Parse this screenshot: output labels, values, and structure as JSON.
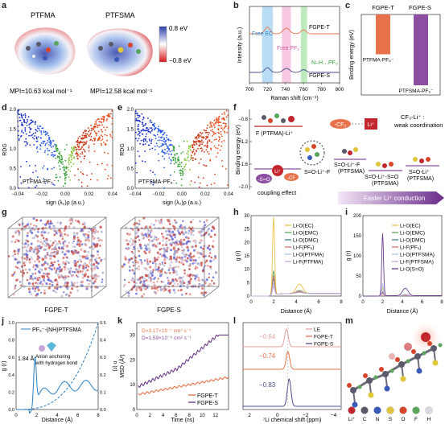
{
  "panel_letters": [
    "a",
    "b",
    "c",
    "d",
    "e",
    "f",
    "g",
    "h",
    "i",
    "j",
    "k",
    "l",
    "m"
  ],
  "a": {
    "mol1": "PTFMA",
    "mol2": "PTFSMA",
    "mpi1": "MPI=10.63 kcal mol⁻¹",
    "mpi2": "MPI=12.58 kcal mol⁻¹",
    "scale_max": "0.8 eV",
    "scale_min": "−0.8 eV",
    "colors": {
      "neg": "#d7191c",
      "mid": "#ffffff",
      "pos": "#2c3ea8"
    }
  },
  "b": {
    "ylabel": "Intensity (a.u.)",
    "xlabel": "Raman shift (cm⁻¹)",
    "xticks": [
      "700",
      "720",
      "740",
      "760",
      "780",
      "800"
    ],
    "bands": [
      {
        "label": "Free EC",
        "from": 714,
        "to": 726,
        "color": "#9fd0f0"
      },
      {
        "label": "Free PF₆⁻",
        "from": 736,
        "to": 746,
        "color": "#f5b6d8"
      },
      {
        "label": "N–H…PF₆",
        "from": 757,
        "to": 764,
        "color": "#a9e2a9"
      }
    ],
    "series": [
      {
        "name": "FGPE-T",
        "color": "#e8734a"
      },
      {
        "name": "FGPE-S",
        "color": "#4a4e8c"
      }
    ]
  },
  "c": {
    "ylabel": "Binding energy (eV)",
    "columns": [
      "FGPE-T",
      "FGPE-S"
    ],
    "bar_labels": [
      "PTFMA-PF₆⁻",
      "PTFSMA-PF₆⁻"
    ],
    "values": [
      -0.45,
      -0.8
    ],
    "colors": [
      "#e8734a",
      "#8c4ea0"
    ]
  },
  "d": {
    "inset": "PTFMA-PF₆⁻",
    "ylabel": "RDG",
    "xlabel": "sign (λ₂)ρ (a.u.)",
    "xticks": [
      "−0.04",
      "−0.02",
      "0.00",
      "0.02",
      "0.04"
    ],
    "yticks": [
      "0.0",
      "0.5",
      "1.0",
      "1.5",
      "2.0"
    ]
  },
  "e": {
    "inset": "PTFSMA-PF₆⁻",
    "ylabel": "RDG",
    "xlabel": "sign (λ₂)ρ (a.u.)",
    "xticks": [
      "−0.04",
      "−0.02",
      "0.00",
      "0.02",
      "0.04"
    ],
    "yticks": [
      "0.0",
      "0.5",
      "1.0",
      "1.5",
      "2.0"
    ]
  },
  "f": {
    "ylabel": "Binding energy (eV)",
    "yticks": [
      "−0.8",
      "−1.2",
      "−1.6",
      "−2.0"
    ],
    "ptfma_label": "F (PTFMA)-Li⁺",
    "cf3": "-CF₃",
    "li": "Li⁺",
    "weak": "CF₃-Li⁺ :",
    "weak2": "weak coordination",
    "ligand1": "S=O-Li⁺-F",
    "ligand1b": "(PTFSMA)",
    "ligand2": "S=O-Li⁺-S=O",
    "ligand2b": "(PTFSMA)",
    "ligand3": "S=O-Li⁺",
    "ligand3b": "(PTFSMA)",
    "top_label": "S=O-Li⁺-F",
    "coupling": "coupling effect",
    "so": "-S=O",
    "cf": "-CF",
    "arrow": "Faster Li⁺ conduction",
    "levels": [
      -1.0,
      -1.9,
      -1.8,
      -1.7
    ]
  },
  "g": {
    "box1": "FGPE-T",
    "box2": "FGPE-S"
  },
  "h": {
    "ylabel": "g (r)",
    "xlabel": "Distance (Å)",
    "yticks": [
      "0",
      "5",
      "10",
      "15",
      "20",
      "25",
      "30"
    ],
    "xticks": [
      "0",
      "2",
      "4",
      "6",
      "8"
    ],
    "legend": [
      {
        "name": "Li-O(EC)",
        "color": "#e8c24a"
      },
      {
        "name": "Li-O(EMC)",
        "color": "#5aa55a"
      },
      {
        "name": "Li-O(DMC)",
        "color": "#3b7f8c"
      },
      {
        "name": "Li-F(PF₆)",
        "color": "#d9736e"
      },
      {
        "name": "Li-O(PTFMA)",
        "color": "#a7c5e8"
      },
      {
        "name": "Li-F(PTFMA)",
        "color": "#c6a8d8"
      }
    ],
    "peaks": [
      29,
      9,
      6,
      7,
      4,
      3
    ]
  },
  "i": {
    "ylabel": "g (r)",
    "xlabel": "Distance (Å)",
    "yticks": [
      "0",
      "50",
      "100",
      "150",
      "200"
    ],
    "xticks": [
      "0",
      "2",
      "4",
      "6",
      "8"
    ],
    "legend": [
      {
        "name": "Li-O(EC)",
        "color": "#e8c24a"
      },
      {
        "name": "Li-O(EMC)",
        "color": "#5aa55a"
      },
      {
        "name": "Li-O(DMC)",
        "color": "#3b7f8c"
      },
      {
        "name": "Li-F(PF₆)",
        "color": "#d9736e"
      },
      {
        "name": "Li-O(PTFSMA)",
        "color": "#a7c5e8"
      },
      {
        "name": "Li-F(PTFSMA)",
        "color": "#c6a8d8"
      },
      {
        "name": "Li-O(S=O)",
        "color": "#6a3d8a"
      }
    ],
    "peaks": [
      20,
      10,
      8,
      6,
      30,
      12,
      155
    ]
  },
  "j": {
    "legend": "PF₆⁻-(NH)PTFSMA",
    "ylabel": "g (r)",
    "ylabel2": "n (r)",
    "xlabel": "Distance (Å)",
    "yticks": [
      "0.0",
      "0.2",
      "0.4",
      "0.6",
      "0.8",
      "1.0"
    ],
    "yticks2": [
      "0.0",
      "0.1",
      "0.2",
      "0.3",
      "0.4",
      "0.5"
    ],
    "xticks": [
      "0",
      "2",
      "4",
      "6",
      "8"
    ],
    "peak_label": "1.84 Å",
    "note1": "Anion anchoring",
    "note2": "with hydrogen bond",
    "color": "#2a7fc4"
  },
  "k": {
    "ylabel": "MSD (Å²)",
    "xlabel": "Time (ns)",
    "yticks": [
      "0",
      "10",
      "20",
      "30"
    ],
    "xticks": [
      "0",
      "2",
      "4",
      "6",
      "8",
      "10",
      "12"
    ],
    "d1": "D=3.17×10⁻⁷ cm² s⁻¹",
    "d2": "D=1.59×10⁻⁶ cm² s⁻¹",
    "series": [
      {
        "name": "FGPE-T",
        "color": "#e8734a"
      },
      {
        "name": "FGPE-S",
        "color": "#6a3d8a"
      }
    ]
  },
  "l": {
    "xlabel": "⁷Li chemical shift (ppm)",
    "xticks": [
      "2",
      "0",
      "−2",
      "−4"
    ],
    "legend": [
      {
        "name": "LE",
        "color": "#e8a0a0"
      },
      {
        "name": "FGPE-T",
        "color": "#e8734a"
      },
      {
        "name": "FGPE-S",
        "color": "#4a4e8c"
      }
    ],
    "shift1": "−0.64",
    "shift2": "−0.74",
    "shift3": "−0.83"
  },
  "m": {
    "legend": [
      {
        "name": "Li⁺",
        "color": "#c2272d"
      },
      {
        "name": "C",
        "color": "#5a5a6a"
      },
      {
        "name": "N",
        "color": "#3a5ab8"
      },
      {
        "name": "S",
        "color": "#e0c43a"
      },
      {
        "name": "O",
        "color": "#d8442a"
      },
      {
        "name": "F",
        "color": "#5aa55a"
      },
      {
        "name": "H",
        "color": "#d8d8e0"
      }
    ]
  }
}
